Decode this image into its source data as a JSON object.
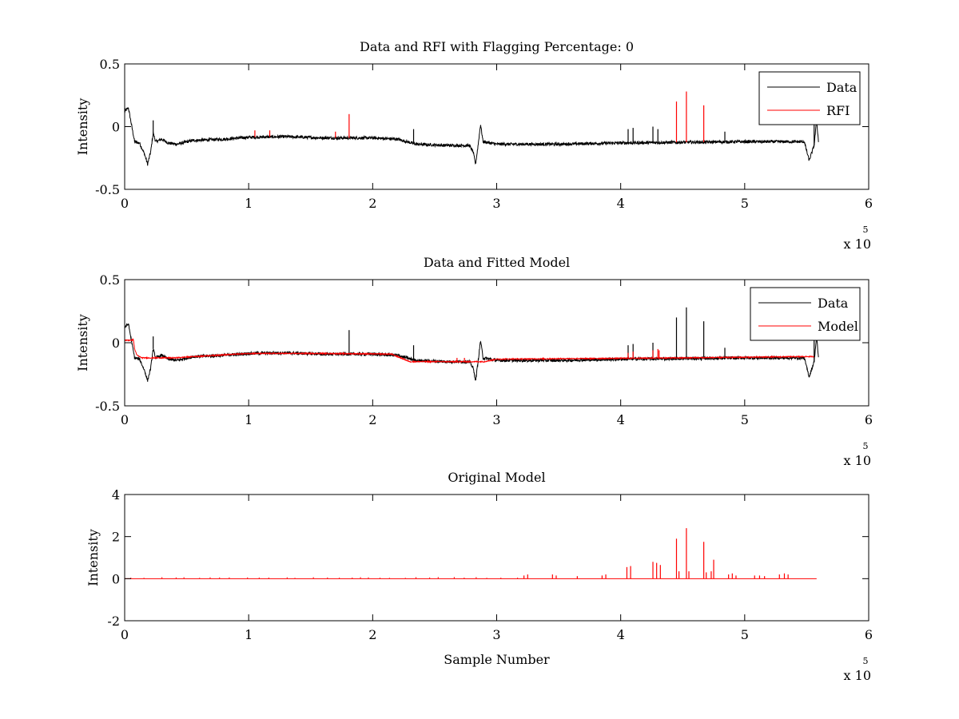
{
  "figure": {
    "background": "#ffffff",
    "colors": {
      "data": "#000000",
      "rfi": "#ff0000",
      "model": "#ff0000",
      "axes": "#000000"
    }
  },
  "chart_data": [
    {
      "type": "line",
      "title": "Data and RFI with Flagging Percentage: 0",
      "xlabel": "",
      "ylabel": "Intensity",
      "xlim": [
        0,
        600000
      ],
      "ylim": [
        -0.5,
        0.5
      ],
      "xticks": [
        0,
        100000,
        200000,
        300000,
        400000,
        500000,
        600000
      ],
      "xtick_labels": [
        "0",
        "1",
        "2",
        "3",
        "4",
        "5",
        "6"
      ],
      "yticks": [
        -0.5,
        0,
        0.5
      ],
      "ytick_labels": [
        "-0.5",
        "0",
        "0.5"
      ],
      "x_multiplier": {
        "base": "x 10",
        "exponent": "5"
      },
      "grid": false,
      "legend": {
        "position": "top-right",
        "entries": [
          "Data",
          "RFI"
        ]
      },
      "series": [
        {
          "name": "Data",
          "color": "#000000",
          "baseline": [
            [
              0,
              0.12
            ],
            [
              3000,
              0.15
            ],
            [
              8000,
              -0.12
            ],
            [
              12000,
              -0.13
            ],
            [
              16000,
              -0.22
            ],
            [
              18500,
              -0.3
            ],
            [
              21000,
              -0.2
            ],
            [
              23000,
              -0.05
            ],
            [
              25000,
              -0.12
            ],
            [
              30000,
              -0.1
            ],
            [
              35000,
              -0.13
            ],
            [
              42000,
              -0.14
            ],
            [
              55000,
              -0.11
            ],
            [
              80000,
              -0.1
            ],
            [
              100000,
              -0.085
            ],
            [
              130000,
              -0.08
            ],
            [
              160000,
              -0.09
            ],
            [
              200000,
              -0.09
            ],
            [
              220000,
              -0.1
            ],
            [
              235000,
              -0.14
            ],
            [
              260000,
              -0.15
            ],
            [
              278000,
              -0.15
            ],
            [
              281000,
              -0.2
            ],
            [
              283000,
              -0.3
            ],
            [
              285000,
              -0.15
            ],
            [
              287000,
              0.02
            ],
            [
              289000,
              -0.12
            ],
            [
              300000,
              -0.14
            ],
            [
              350000,
              -0.14
            ],
            [
              400000,
              -0.13
            ],
            [
              450000,
              -0.125
            ],
            [
              500000,
              -0.12
            ],
            [
              548000,
              -0.12
            ],
            [
              552000,
              -0.27
            ],
            [
              556000,
              -0.15
            ],
            [
              558000,
              0.05
            ],
            [
              559500,
              -0.12
            ]
          ],
          "spikes": [
            [
              23000,
              0.05
            ],
            [
              233000,
              -0.02
            ],
            [
              287000,
              0.02
            ],
            [
              406000,
              -0.02
            ],
            [
              410000,
              -0.01
            ],
            [
              426000,
              0.0
            ],
            [
              430000,
              -0.02
            ],
            [
              484000,
              -0.04
            ],
            [
              556000,
              0.02
            ]
          ],
          "noise": 0.012
        },
        {
          "name": "RFI",
          "color": "#ff0000",
          "spikes": [
            [
              105000,
              -0.03
            ],
            [
              117000,
              -0.03
            ],
            [
              170000,
              -0.04
            ],
            [
              181000,
              0.1
            ],
            [
              445000,
              0.2
            ],
            [
              453000,
              0.28
            ],
            [
              467000,
              0.17
            ]
          ]
        }
      ]
    },
    {
      "type": "line",
      "title": "Data and Fitted Model",
      "xlabel": "",
      "ylabel": "Intensity",
      "xlim": [
        0,
        600000
      ],
      "ylim": [
        -0.5,
        0.5
      ],
      "xticks": [
        0,
        100000,
        200000,
        300000,
        400000,
        500000,
        600000
      ],
      "xtick_labels": [
        "0",
        "1",
        "2",
        "3",
        "4",
        "5",
        "6"
      ],
      "yticks": [
        -0.5,
        0,
        0.5
      ],
      "ytick_labels": [
        "-0.5",
        "0",
        "0.5"
      ],
      "x_multiplier": {
        "base": "x 10",
        "exponent": "5"
      },
      "grid": false,
      "legend": {
        "position": "top-right",
        "entries": [
          "Data",
          "Model"
        ]
      },
      "series": [
        {
          "name": "Data",
          "color": "#000000",
          "baseline": [
            [
              0,
              0.12
            ],
            [
              3000,
              0.15
            ],
            [
              8000,
              -0.12
            ],
            [
              12000,
              -0.13
            ],
            [
              16000,
              -0.22
            ],
            [
              18500,
              -0.3
            ],
            [
              21000,
              -0.2
            ],
            [
              23000,
              -0.05
            ],
            [
              25000,
              -0.12
            ],
            [
              30000,
              -0.1
            ],
            [
              35000,
              -0.13
            ],
            [
              42000,
              -0.14
            ],
            [
              55000,
              -0.11
            ],
            [
              80000,
              -0.1
            ],
            [
              100000,
              -0.085
            ],
            [
              130000,
              -0.08
            ],
            [
              160000,
              -0.09
            ],
            [
              200000,
              -0.09
            ],
            [
              220000,
              -0.1
            ],
            [
              235000,
              -0.14
            ],
            [
              260000,
              -0.15
            ],
            [
              278000,
              -0.15
            ],
            [
              281000,
              -0.2
            ],
            [
              283000,
              -0.3
            ],
            [
              285000,
              -0.15
            ],
            [
              287000,
              0.02
            ],
            [
              289000,
              -0.12
            ],
            [
              300000,
              -0.14
            ],
            [
              350000,
              -0.14
            ],
            [
              400000,
              -0.13
            ],
            [
              450000,
              -0.125
            ],
            [
              500000,
              -0.12
            ],
            [
              548000,
              -0.12
            ],
            [
              552000,
              -0.27
            ],
            [
              556000,
              -0.15
            ],
            [
              558000,
              0.05
            ],
            [
              559500,
              -0.12
            ]
          ],
          "spikes": [
            [
              23000,
              0.05
            ],
            [
              181000,
              0.1
            ],
            [
              233000,
              -0.02
            ],
            [
              287000,
              0.02
            ],
            [
              406000,
              -0.02
            ],
            [
              410000,
              -0.01
            ],
            [
              426000,
              0.0
            ],
            [
              445000,
              0.2
            ],
            [
              453000,
              0.28
            ],
            [
              467000,
              0.17
            ],
            [
              484000,
              -0.04
            ],
            [
              556000,
              0.02
            ]
          ],
          "noise": 0.012
        },
        {
          "name": "Model",
          "color": "#ff0000",
          "baseline": [
            [
              0,
              0.02
            ],
            [
              6000,
              0.02
            ],
            [
              7000,
              0.03
            ],
            [
              8000,
              -0.05
            ],
            [
              10000,
              -0.1
            ],
            [
              14000,
              -0.12
            ],
            [
              25000,
              -0.12
            ],
            [
              40000,
              -0.12
            ],
            [
              55000,
              -0.11
            ],
            [
              100000,
              -0.085
            ],
            [
              160000,
              -0.085
            ],
            [
              215000,
              -0.09
            ],
            [
              230000,
              -0.15
            ],
            [
              290000,
              -0.15
            ],
            [
              300000,
              -0.13
            ],
            [
              450000,
              -0.12
            ],
            [
              548000,
              -0.11
            ],
            [
              556000,
              -0.11
            ]
          ],
          "spikes": [
            [
              268000,
              -0.12
            ],
            [
              274000,
              -0.12
            ],
            [
              406000,
              -0.08
            ],
            [
              410000,
              -0.07
            ],
            [
              426000,
              -0.06
            ],
            [
              430000,
              -0.05
            ],
            [
              431000,
              -0.06
            ]
          ],
          "noise": 0.004
        }
      ]
    },
    {
      "type": "line",
      "title": "Original Model",
      "xlabel": "Sample Number",
      "ylabel": "Intensity",
      "xlim": [
        0,
        600000
      ],
      "ylim": [
        -2,
        4
      ],
      "xticks": [
        0,
        100000,
        200000,
        300000,
        400000,
        500000,
        600000
      ],
      "xtick_labels": [
        "0",
        "1",
        "2",
        "3",
        "4",
        "5",
        "6"
      ],
      "yticks": [
        -2,
        0,
        2,
        4
      ],
      "ytick_labels": [
        "-2",
        "0",
        "2",
        "4"
      ],
      "x_multiplier": {
        "base": "x 10",
        "exponent": "5"
      },
      "grid": false,
      "legend": null,
      "series": [
        {
          "name": "",
          "color": "#ff0000",
          "baseline": [
            [
              0,
              0
            ],
            [
              558000,
              0
            ]
          ],
          "spikes": [
            [
              322000,
              0.15
            ],
            [
              325000,
              0.2
            ],
            [
              345000,
              0.2
            ],
            [
              348000,
              0.15
            ],
            [
              365000,
              0.12
            ],
            [
              385000,
              0.15
            ],
            [
              388000,
              0.2
            ],
            [
              405000,
              0.55
            ],
            [
              408000,
              0.6
            ],
            [
              426000,
              0.8
            ],
            [
              429000,
              0.75
            ],
            [
              432000,
              0.65
            ],
            [
              445000,
              1.9
            ],
            [
              447000,
              0.35
            ],
            [
              453000,
              2.4
            ],
            [
              455000,
              0.35
            ],
            [
              467000,
              1.75
            ],
            [
              469000,
              0.3
            ],
            [
              473000,
              0.35
            ],
            [
              475000,
              0.9
            ],
            [
              487000,
              0.2
            ],
            [
              490000,
              0.25
            ],
            [
              493000,
              0.15
            ],
            [
              508000,
              0.15
            ],
            [
              512000,
              0.15
            ],
            [
              516000,
              0.12
            ],
            [
              528000,
              0.2
            ],
            [
              532000,
              0.25
            ],
            [
              535000,
              0.2
            ]
          ],
          "small_spike_range": [
            [
              5000,
              320000
            ],
            [
              0.04,
              0.08
            ]
          ]
        }
      ]
    }
  ]
}
